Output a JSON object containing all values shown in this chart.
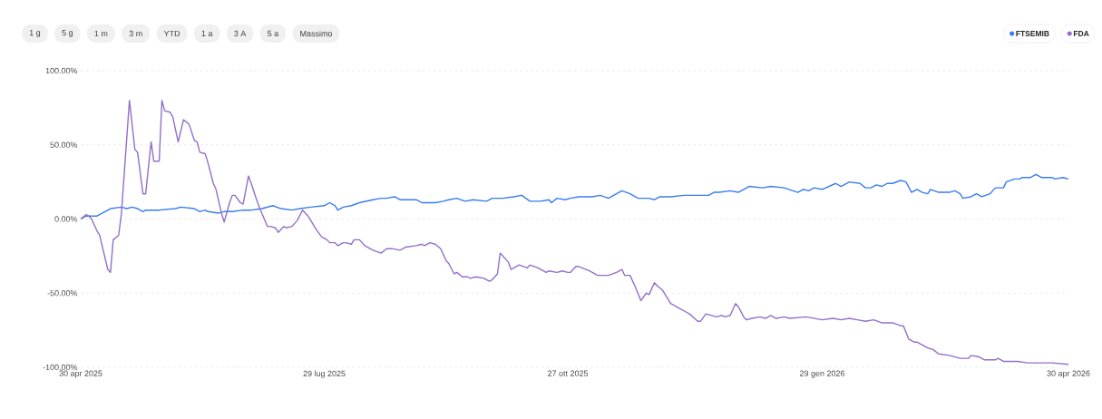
{
  "chart_data": {
    "type": "line",
    "annotations": [
      "1 g",
      "5 g",
      "1 m",
      "3 m",
      "YTD",
      "1 a",
      "3 A",
      "5 a",
      "Massimo"
    ],
    "xlim": [
      "2025-04-30",
      "2026-04-30"
    ],
    "xticks": [
      {
        "value": "2025-04-30",
        "label": "30 apr 2025"
      },
      {
        "value": "2025-07-29",
        "label": "29 lug 2025"
      },
      {
        "value": "2025-10-27",
        "label": "27 ott 2025"
      },
      {
        "value": "2026-01-29",
        "label": "29 gen 2026"
      },
      {
        "value": "2026-04-30",
        "label": "30 apr 2026"
      }
    ],
    "ylim": [
      -100,
      100
    ],
    "yticks": [
      {
        "value": -100,
        "label": "-100.00%"
      },
      {
        "value": -50,
        "label": "-50.00%"
      },
      {
        "value": 0,
        "label": "0.00%"
      },
      {
        "value": 50,
        "label": "50.00%"
      },
      {
        "value": 100,
        "label": "100.00%"
      }
    ],
    "grid": "y",
    "legend": "top right",
    "marker": "none",
    "line_style": "solid",
    "series": [
      {
        "name": "FTSEMIB",
        "color": "#3b7cf0",
        "x": [
          "2025-04-30",
          "2025-05-02",
          "2025-05-05",
          "2025-05-06",
          "2025-05-09",
          "2025-05-11",
          "2025-05-15",
          "2025-05-17",
          "2025-05-19",
          "2025-05-21",
          "2025-05-23",
          "2025-05-24",
          "2025-05-29",
          "2025-06-04",
          "2025-06-06",
          "2025-06-11",
          "2025-06-13",
          "2025-06-15",
          "2025-06-16",
          "2025-06-20",
          "2025-06-22",
          "2025-06-25",
          "2025-06-29",
          "2025-07-02",
          "2025-07-06",
          "2025-07-10",
          "2025-07-13",
          "2025-07-17",
          "2025-07-20",
          "2025-07-24",
          "2025-07-29",
          "2025-07-31",
          "2025-08-02",
          "2025-08-03",
          "2025-08-05",
          "2025-08-08",
          "2025-08-11",
          "2025-08-16",
          "2025-08-19",
          "2025-08-21",
          "2025-08-24",
          "2025-08-26",
          "2025-08-30",
          "2025-09-01",
          "2025-09-03",
          "2025-09-06",
          "2025-09-08",
          "2025-09-11",
          "2025-09-13",
          "2025-09-16",
          "2025-09-19",
          "2025-09-22",
          "2025-09-27",
          "2025-09-29",
          "2025-10-03",
          "2025-10-07",
          "2025-10-10",
          "2025-10-13",
          "2025-10-17",
          "2025-10-20",
          "2025-10-21",
          "2025-10-23",
          "2025-10-26",
          "2025-10-28",
          "2025-10-31",
          "2025-11-05",
          "2025-11-08",
          "2025-11-11",
          "2025-11-14",
          "2025-11-16",
          "2025-11-19",
          "2025-11-22",
          "2025-11-24",
          "2025-11-26",
          "2025-11-28",
          "2025-11-30",
          "2025-12-04",
          "2025-12-09",
          "2025-12-13",
          "2025-12-18",
          "2025-12-20",
          "2025-12-22",
          "2025-12-26",
          "2025-12-29",
          "2026-01-02",
          "2026-01-07",
          "2026-01-10",
          "2026-01-15",
          "2026-01-20",
          "2026-01-22",
          "2026-01-24",
          "2026-01-26",
          "2026-01-29",
          "2026-02-03",
          "2026-02-05",
          "2026-02-08",
          "2026-02-12",
          "2026-02-14",
          "2026-02-16",
          "2026-02-18",
          "2026-02-20",
          "2026-02-22",
          "2026-02-24",
          "2026-02-27",
          "2026-03-01",
          "2026-03-03",
          "2026-03-05",
          "2026-03-07",
          "2026-03-09",
          "2026-03-10",
          "2026-03-13",
          "2026-03-17",
          "2026-03-19",
          "2026-03-21",
          "2026-03-22",
          "2026-03-25",
          "2026-03-27",
          "2026-03-29",
          "2026-04-01",
          "2026-04-03",
          "2026-04-06",
          "2026-04-07",
          "2026-04-10",
          "2026-04-12",
          "2026-04-13",
          "2026-04-16",
          "2026-04-18",
          "2026-04-20",
          "2026-04-22",
          "2026-04-24",
          "2026-04-25",
          "2026-04-28",
          "2026-04-30"
        ],
        "values": [
          0,
          2,
          2,
          2,
          5,
          7,
          8,
          7,
          8,
          7,
          5,
          6,
          6,
          7,
          8,
          7,
          5,
          6,
          5,
          4,
          5,
          5,
          6,
          6,
          7,
          9,
          7,
          6,
          7,
          8,
          9,
          11,
          9,
          6,
          8,
          9,
          11,
          13,
          14,
          14,
          15,
          13,
          13,
          13,
          11,
          11,
          11,
          12,
          13,
          14,
          12,
          13,
          12,
          14,
          14,
          15,
          16,
          12,
          12,
          13,
          11,
          14,
          13,
          14,
          15,
          15,
          16,
          14,
          17,
          19,
          17,
          14,
          14,
          14,
          13,
          15,
          15,
          16,
          16,
          16,
          18,
          18,
          19,
          18,
          22,
          21,
          22,
          21,
          18,
          20,
          19,
          21,
          20,
          24,
          22,
          25,
          24,
          21,
          21,
          23,
          22,
          24,
          24,
          26,
          25,
          18,
          20,
          18,
          17,
          20,
          18,
          18,
          19,
          17,
          14,
          15,
          17,
          15,
          17,
          21,
          21,
          25,
          27,
          27,
          28,
          28,
          30,
          28,
          28,
          28,
          27,
          28,
          27
        ]
      },
      {
        "name": "FDA",
        "color": "#9370c8",
        "x": [
          "2025-04-30",
          "2025-05-02",
          "2025-05-03",
          "2025-05-04",
          "2025-05-06",
          "2025-05-07",
          "2025-05-10",
          "2025-05-11",
          "2025-05-12",
          "2025-05-14",
          "2025-05-15",
          "2025-05-18",
          "2025-05-20",
          "2025-05-21",
          "2025-05-23",
          "2025-05-24",
          "2025-05-26",
          "2025-05-27",
          "2025-05-29",
          "2025-05-30",
          "2025-05-31",
          "2025-06-02",
          "2025-06-03",
          "2025-06-05",
          "2025-06-07",
          "2025-06-09",
          "2025-06-11",
          "2025-06-12",
          "2025-06-13",
          "2025-06-15",
          "2025-06-16",
          "2025-06-18",
          "2025-06-19",
          "2025-06-21",
          "2025-06-22",
          "2025-06-24",
          "2025-06-25",
          "2025-06-26",
          "2025-06-28",
          "2025-06-29",
          "2025-07-01",
          "2025-07-02",
          "2025-07-04",
          "2025-07-05",
          "2025-07-08",
          "2025-07-09",
          "2025-07-11",
          "2025-07-12",
          "2025-07-14",
          "2025-07-15",
          "2025-07-17",
          "2025-07-19",
          "2025-07-21",
          "2025-07-23",
          "2025-07-26",
          "2025-07-28",
          "2025-07-30",
          "2025-07-31",
          "2025-08-02",
          "2025-08-03",
          "2025-08-05",
          "2025-08-06",
          "2025-08-08",
          "2025-08-09",
          "2025-08-11",
          "2025-08-13",
          "2025-08-16",
          "2025-08-19",
          "2025-08-21",
          "2025-08-23",
          "2025-08-26",
          "2025-08-28",
          "2025-09-01",
          "2025-09-03",
          "2025-09-04",
          "2025-09-06",
          "2025-09-08",
          "2025-09-10",
          "2025-09-12",
          "2025-09-13",
          "2025-09-15",
          "2025-09-16",
          "2025-09-18",
          "2025-09-20",
          "2025-09-21",
          "2025-09-23",
          "2025-09-26",
          "2025-09-28",
          "2025-09-29",
          "2025-10-01",
          "2025-10-02",
          "2025-10-05",
          "2025-10-06",
          "2025-10-08",
          "2025-10-09",
          "2025-10-12",
          "2025-10-13",
          "2025-10-16",
          "2025-10-19",
          "2025-10-20",
          "2025-10-23",
          "2025-10-25",
          "2025-10-27",
          "2025-10-28",
          "2025-10-30",
          "2025-10-31",
          "2025-11-04",
          "2025-11-07",
          "2025-11-11",
          "2025-11-14",
          "2025-11-16",
          "2025-11-17",
          "2025-11-19",
          "2025-11-21",
          "2025-11-23",
          "2025-11-25",
          "2025-11-26",
          "2025-11-28",
          "2025-11-29",
          "2025-12-01",
          "2025-12-04",
          "2025-12-07",
          "2025-12-10",
          "2025-12-11",
          "2025-12-14",
          "2025-12-15",
          "2025-12-17",
          "2025-12-21",
          "2025-12-23",
          "2025-12-24",
          "2025-12-26",
          "2025-12-28",
          "2025-12-29",
          "2025-12-31",
          "2026-01-01",
          "2026-01-03",
          "2026-01-06",
          "2026-01-08",
          "2026-01-10",
          "2026-01-12",
          "2026-01-15",
          "2026-01-17",
          "2026-01-23",
          "2026-01-29",
          "2026-02-02",
          "2026-02-05",
          "2026-02-08",
          "2026-02-11",
          "2026-02-14",
          "2026-02-17",
          "2026-02-20",
          "2026-02-24",
          "2026-02-27",
          "2026-02-28",
          "2026-03-02",
          "2026-03-04",
          "2026-03-05",
          "2026-03-07",
          "2026-03-09",
          "2026-03-11",
          "2026-03-13",
          "2026-03-17",
          "2026-03-21",
          "2026-03-24",
          "2026-03-25",
          "2026-03-28",
          "2026-03-30",
          "2026-04-03",
          "2026-04-04",
          "2026-04-06",
          "2026-04-11",
          "2026-04-15",
          "2026-04-20",
          "2026-04-24",
          "2026-04-30"
        ],
        "values": [
          0,
          3,
          2,
          0,
          -8,
          -11,
          -34,
          -36,
          -14,
          -11,
          3,
          80,
          47,
          45,
          17,
          17,
          52,
          39,
          39,
          80,
          73,
          72,
          69,
          52,
          67,
          64,
          53,
          52,
          45,
          44,
          38,
          24,
          20,
          4,
          -2,
          11,
          16,
          16,
          11,
          10,
          29,
          24,
          13,
          8,
          -5,
          -5,
          -6,
          -9,
          -5,
          -6,
          -5,
          -1,
          6,
          2,
          -7,
          -12,
          -14,
          -16,
          -16,
          -18,
          -16,
          -16,
          -17,
          -14,
          -14,
          -18,
          -21,
          -23,
          -20,
          -20,
          -21,
          -19,
          -18,
          -17,
          -18,
          -16,
          -17,
          -20,
          -28,
          -30,
          -37,
          -36,
          -39,
          -39,
          -40,
          -39,
          -40,
          -42,
          -41,
          -37,
          -23,
          -29,
          -34,
          -32,
          -31,
          -33,
          -31,
          -33,
          -36,
          -35,
          -36,
          -35,
          -36,
          -36,
          -32,
          -32,
          -35,
          -38,
          -38,
          -36,
          -34,
          -38,
          -38,
          -46,
          -55,
          -50,
          -51,
          -43,
          -45,
          -48,
          -57,
          -60,
          -63,
          -64,
          -69,
          -69,
          -64,
          -66,
          -65,
          -66,
          -65,
          -57,
          -59,
          -66,
          -68,
          -67,
          -66,
          -67,
          -65,
          -67,
          -66,
          -67,
          -66,
          -68,
          -67,
          -68,
          -67,
          -68,
          -69,
          -68,
          -70,
          -70,
          -72,
          -72,
          -81,
          -83,
          -83,
          -85,
          -87,
          -88,
          -91,
          -92,
          -94,
          -94,
          -92,
          -93,
          -95,
          -95,
          -94,
          -96,
          -96,
          -97,
          -97,
          -97,
          -98
        ]
      }
    ]
  }
}
